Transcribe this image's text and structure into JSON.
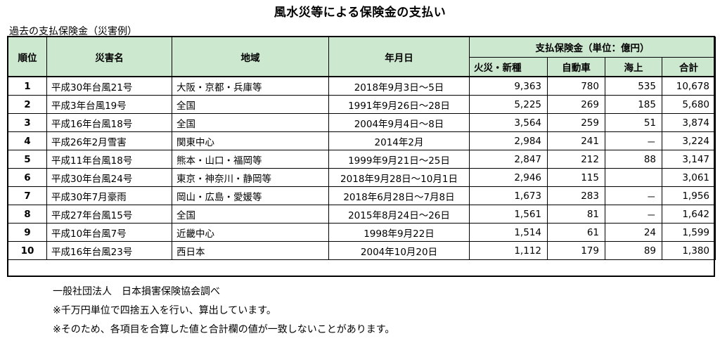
{
  "title": "風水災等による保険金の支払い",
  "subtitle": "過去の支払保険金（災害例）",
  "headers": {
    "rank": "順位",
    "disaster": "災害名",
    "region": "地域",
    "date": "年月日",
    "payment_group": "支払保険金（単位：億円）",
    "fire": "火災・新種",
    "auto": "自動車",
    "marine": "海上",
    "total": "合計"
  },
  "rows": [
    {
      "rank": "1",
      "disaster": "平成30年台風21号",
      "region": "大阪・京都・兵庫等",
      "date": "2018年9月3日～5日",
      "fire": "9,363",
      "auto": "780",
      "marine": "535",
      "total": "10,678"
    },
    {
      "rank": "2",
      "disaster": "平成3年台風19号",
      "region": "全国",
      "date": "1991年9月26日～28日",
      "fire": "5,225",
      "auto": "269",
      "marine": "185",
      "total": "5,680"
    },
    {
      "rank": "3",
      "disaster": "平成16年台風18号",
      "region": "全国",
      "date": "2004年9月4日～8日",
      "fire": "3,564",
      "auto": "259",
      "marine": "51",
      "total": "3,874"
    },
    {
      "rank": "4",
      "disaster": "平成26年2月雪害",
      "region": "関東中心",
      "date": "2014年2月",
      "fire": "2,984",
      "auto": "241",
      "marine": "－",
      "total": "3,224"
    },
    {
      "rank": "5",
      "disaster": "平成11年台風18号",
      "region": "熊本・山口・福岡等",
      "date": "1999年9月21日～25日",
      "fire": "2,847",
      "auto": "212",
      "marine": "88",
      "total": "3,147"
    },
    {
      "rank": "6",
      "disaster": "平成30年台風24号",
      "region": "東京・神奈川・静岡等",
      "date": "2018年9月28日～10月1日",
      "fire": "2,946",
      "auto": "115",
      "marine": "",
      "total": "3,061"
    },
    {
      "rank": "7",
      "disaster": "平成30年7月豪雨",
      "region": "岡山・広島・愛媛等",
      "date": "2018年6月28日～7月8日",
      "fire": "1,673",
      "auto": "283",
      "marine": "－",
      "total": "1,956"
    },
    {
      "rank": "8",
      "disaster": "平成27年台風15号",
      "region": "全国",
      "date": "2015年8月24日～26日",
      "fire": "1,561",
      "auto": "81",
      "marine": "－",
      "total": "1,642"
    },
    {
      "rank": "9",
      "disaster": "平成10年台風7号",
      "region": "近畿中心",
      "date": "1998年9月22日",
      "fire": "1,514",
      "auto": "61",
      "marine": "24",
      "total": "1,599"
    },
    {
      "rank": "10",
      "disaster": "平成16年台風23号",
      "region": "西日本",
      "date": "2004年10月20日",
      "fire": "1,112",
      "auto": "179",
      "marine": "89",
      "total": "1,380"
    }
  ],
  "notes": [
    "一般社団法人　日本損害保険協会調べ",
    "※千万円単位で四捨五入を行い、算出しています。",
    "※そのため、各項目を合算した値と合計欄の値が一致しないことがあります。"
  ]
}
